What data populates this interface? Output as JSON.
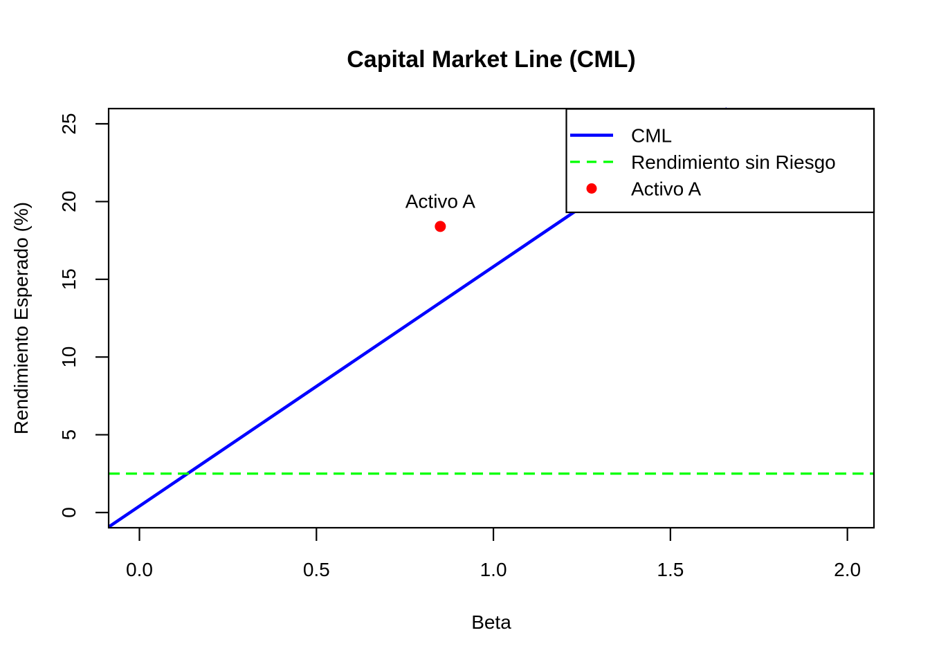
{
  "chart_data": {
    "type": "line",
    "title": "Capital Market Line (CML)",
    "xlabel": "Beta",
    "ylabel": "Rendimiento Esperado (%)",
    "xlim": [
      -0.087,
      2.075
    ],
    "ylim": [
      -0.98,
      25.98
    ],
    "grid": false,
    "background": "#FFFFFF",
    "axis_color": "#000000",
    "x_ticks": {
      "values": [
        0.0,
        0.5,
        1.0,
        1.5,
        2.0
      ],
      "labels": [
        "0.0",
        "0.5",
        "1.0",
        "1.5",
        "2.0"
      ]
    },
    "y_ticks": {
      "values": [
        0,
        5,
        10,
        15,
        20,
        25
      ],
      "labels": [
        "0",
        "5",
        "10",
        "15",
        "20",
        "25"
      ]
    },
    "y_tick_label_rotation": 90,
    "series": [
      {
        "name": "CML",
        "type": "line",
        "color": "#0000FF",
        "linestyle": "solid",
        "linewidth": 4.5,
        "slope": 15.4,
        "intercept": 0.41,
        "points": [
          [
            -0.087,
            -0.93
          ],
          [
            1.66,
            25.98
          ]
        ]
      },
      {
        "name": "Rendimiento sin Riesgo",
        "type": "hline",
        "color": "#00FF00",
        "linestyle": "dashed",
        "linewidth": 3.2,
        "y": 2.5,
        "points": [
          [
            -0.087,
            2.5
          ],
          [
            2.075,
            2.5
          ]
        ]
      },
      {
        "name": "Activo A",
        "type": "scatter",
        "color": "#FF0000",
        "marker": "filled-circle",
        "marker_radius": 8,
        "points": [
          [
            0.85,
            18.4
          ]
        ],
        "annotation": {
          "text": "Activo A",
          "color": "#FF0000",
          "position": "above"
        }
      }
    ],
    "legend": {
      "position": "topright",
      "border": true,
      "background": "#FFFFFF",
      "entries": [
        {
          "label": "CML",
          "symbol": "line",
          "color": "#0000FF",
          "style": "solid"
        },
        {
          "label": "Rendimiento sin Riesgo",
          "symbol": "line",
          "color": "#00FF00",
          "style": "dashed"
        },
        {
          "label": "Activo A",
          "symbol": "point",
          "color": "#FF0000"
        }
      ]
    }
  }
}
